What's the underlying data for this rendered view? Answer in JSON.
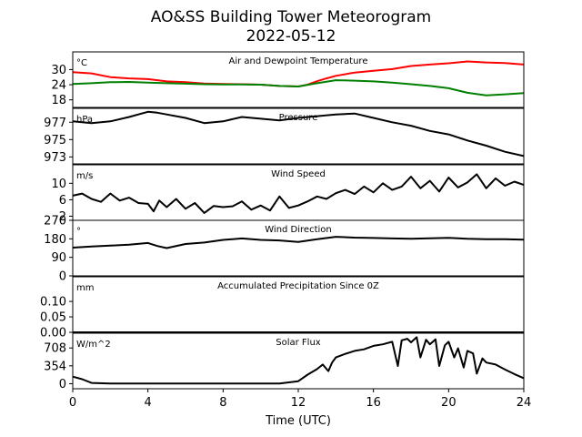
{
  "figure": {
    "title_line1": "AO&SS Building Tower Meteorogram",
    "title_line2": "2022-05-12",
    "xlabel": "Time (UTC)"
  },
  "chart_data": [
    {
      "type": "line",
      "panel": "temperature",
      "title": "Air and Dewpoint Temperature",
      "unit": "°C",
      "xlim": [
        0,
        24
      ],
      "ylim": [
        15,
        37
      ],
      "yticks": [
        18,
        24,
        30
      ],
      "x_ticks": [
        0,
        4,
        8,
        12,
        16,
        20,
        24
      ],
      "series": [
        {
          "color": "#ff0000",
          "x": [
            0,
            1,
            2,
            3,
            4,
            5,
            6,
            7,
            8,
            9,
            10,
            11,
            12,
            12.5,
            13,
            13.5,
            14,
            15,
            16,
            17,
            18,
            19,
            20,
            21,
            22,
            23,
            24
          ],
          "y": [
            29,
            28.5,
            27,
            26.5,
            26.2,
            25.3,
            25,
            24.5,
            24.3,
            24.2,
            24,
            23.5,
            23.3,
            24,
            25.4,
            26.5,
            27.5,
            28.8,
            29.5,
            30.2,
            31.4,
            32,
            32.5,
            33.2,
            32.8,
            32.6,
            32
          ]
        },
        {
          "color": "#008000",
          "x": [
            0,
            1,
            2,
            3,
            4,
            5,
            6,
            7,
            8,
            9,
            10,
            11,
            12,
            13,
            14,
            15,
            16,
            17,
            18,
            19,
            20,
            21,
            22,
            23,
            24
          ],
          "y": [
            24.3,
            24.6,
            25,
            25.1,
            24.8,
            24.6,
            24.4,
            24.2,
            24.1,
            24.1,
            24,
            23.5,
            23.3,
            24.6,
            25.8,
            25.6,
            25.3,
            24.8,
            24.2,
            23.5,
            22.6,
            20.8,
            19.8,
            20.2,
            20.7
          ]
        }
      ]
    },
    {
      "type": "line",
      "panel": "pressure",
      "title": "Pressure",
      "unit": "hPa",
      "xlim": [
        0,
        24
      ],
      "ylim": [
        972.2,
        978.6
      ],
      "yticks": [
        973,
        975,
        977
      ],
      "series": [
        {
          "color": "#000000",
          "x": [
            0,
            1,
            2,
            3,
            4,
            4.5,
            5,
            6,
            7,
            8,
            9,
            10,
            11,
            12,
            13,
            14,
            15,
            16,
            17,
            18,
            19,
            20,
            21,
            22,
            23,
            24
          ],
          "y": [
            977.1,
            976.9,
            977.1,
            977.6,
            978.2,
            978.1,
            977.9,
            977.5,
            976.9,
            977.1,
            977.6,
            977.4,
            977.2,
            977.5,
            977.7,
            977.9,
            978.0,
            977.5,
            977.0,
            976.6,
            976.0,
            975.6,
            974.9,
            974.3,
            973.6,
            973.1
          ]
        }
      ]
    },
    {
      "type": "line",
      "panel": "wind_speed",
      "title": "Wind Speed",
      "unit": "m/s",
      "xlim": [
        0,
        24
      ],
      "ylim": [
        1,
        14.5
      ],
      "yticks": [
        2,
        6,
        10
      ],
      "series": [
        {
          "color": "#000000",
          "x": [
            0,
            0.5,
            1,
            1.5,
            2,
            2.5,
            3,
            3.5,
            4,
            4.3,
            4.6,
            5,
            5.5,
            6,
            6.5,
            7,
            7.5,
            8,
            8.5,
            9,
            9.5,
            10,
            10.5,
            11,
            11.5,
            12,
            12.5,
            13,
            13.5,
            14,
            14.5,
            15,
            15.5,
            16,
            16.5,
            17,
            17.5,
            18,
            18.5,
            19,
            19.5,
            20,
            20.5,
            21,
            21.5,
            22,
            22.5,
            23,
            23.5,
            24
          ],
          "y": [
            7,
            7.5,
            6.2,
            5.5,
            7.5,
            5.8,
            6.5,
            5.2,
            5,
            3.2,
            5.8,
            4.2,
            6.2,
            3.8,
            5.2,
            2.8,
            4.5,
            4.2,
            4.4,
            5.6,
            3.6,
            4.6,
            3.4,
            6.8,
            4,
            4.6,
            5.6,
            6.8,
            6.2,
            7.6,
            8.4,
            7.4,
            9.2,
            7.8,
            10,
            8.4,
            9.2,
            11.6,
            8.8,
            10.6,
            8,
            11.4,
            9,
            10.2,
            12.2,
            8.8,
            11.2,
            9.4,
            10.4,
            9.6
          ]
        }
      ]
    },
    {
      "type": "line",
      "panel": "wind_direction",
      "title": "Wind Direction",
      "unit": "°",
      "xlim": [
        0,
        24
      ],
      "ylim": [
        0,
        270
      ],
      "yticks": [
        0,
        90,
        180,
        270
      ],
      "series": [
        {
          "color": "#000000",
          "x": [
            0,
            1,
            2,
            3,
            4,
            4.5,
            5,
            6,
            7,
            8,
            9,
            10,
            11,
            12,
            13,
            14,
            15,
            16,
            17,
            18,
            19,
            20,
            21,
            22,
            23,
            24
          ],
          "y": [
            137,
            143,
            147,
            152,
            160,
            145,
            135,
            155,
            162,
            175,
            182,
            175,
            172,
            165,
            178,
            190,
            186,
            184,
            182,
            180,
            183,
            185,
            180,
            178,
            178,
            176
          ]
        }
      ]
    },
    {
      "type": "line",
      "panel": "precipitation",
      "title": "Accumulated Precipitation Since 0Z",
      "unit": "mm",
      "xlim": [
        0,
        24
      ],
      "ylim": [
        0,
        0.18
      ],
      "yticks": [
        0.0,
        0.05,
        0.1
      ],
      "tick_labels": [
        "0.00",
        "0.05",
        "0.10"
      ],
      "series": [
        {
          "color": "#000000",
          "x": [
            0,
            24
          ],
          "y": [
            0,
            0
          ]
        }
      ]
    },
    {
      "type": "line",
      "panel": "solar",
      "title": "Solar Flux",
      "unit": "W/m^2",
      "xlim": [
        0,
        24
      ],
      "ylim": [
        -100,
        1000
      ],
      "yticks": [
        0,
        354,
        708
      ],
      "series": [
        {
          "color": "#000000",
          "x": [
            0,
            0.5,
            1,
            2,
            4,
            8,
            11,
            12,
            12.5,
            13,
            13.3,
            13.6,
            13.8,
            14,
            14.5,
            15,
            15.5,
            16,
            16.5,
            17,
            17.3,
            17.5,
            17.8,
            18,
            18.3,
            18.5,
            18.8,
            19,
            19.3,
            19.5,
            19.8,
            20,
            20.3,
            20.5,
            20.8,
            21,
            21.3,
            21.5,
            21.8,
            22,
            22.5,
            23,
            23.5,
            24
          ],
          "y": [
            140,
            90,
            15,
            5,
            5,
            5,
            5,
            50,
            180,
            290,
            380,
            250,
            420,
            520,
            590,
            650,
            680,
            750,
            780,
            830,
            350,
            860,
            890,
            820,
            920,
            520,
            870,
            780,
            880,
            350,
            760,
            830,
            520,
            700,
            320,
            650,
            600,
            200,
            500,
            420,
            380,
            280,
            190,
            110
          ]
        }
      ]
    }
  ]
}
